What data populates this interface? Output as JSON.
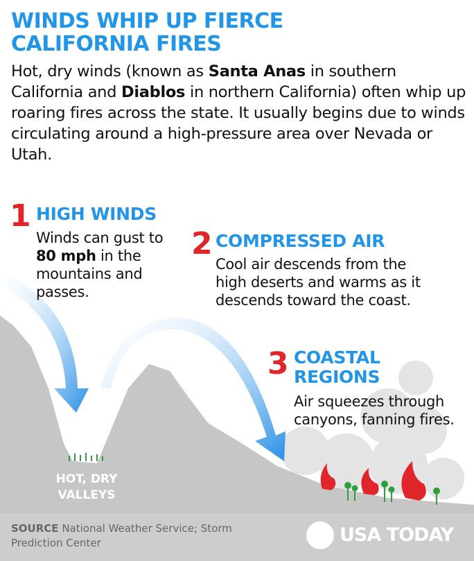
{
  "header": {
    "title_lines": [
      "WINDS WHIP UP FIERCE",
      "CALIFORNIA FIRES"
    ],
    "intro": [
      "Hot, dry winds (known as ",
      "Santa Anas",
      " in southern California and ",
      "Diablos",
      " in northern California) often whip up roaring fires across the state. It usually begins due to winds circulating around a high-pressure area over Nevada or Utah."
    ]
  },
  "steps": [
    {
      "number": "1",
      "heading_lines": [
        "HIGH WINDS"
      ],
      "text": [
        "Winds can gust to ",
        "80 mph",
        " in the mountains and passes."
      ]
    },
    {
      "number": "2",
      "heading_lines": [
        "COMPRESSED AIR"
      ],
      "text": [
        "Cool air descends from the high deserts and warms as it descends toward the coast."
      ]
    },
    {
      "number": "3",
      "heading_lines": [
        "COASTAL",
        "REGIONS"
      ],
      "text": [
        "Air squeezes through canyons, fanning fires."
      ]
    }
  ],
  "valley_label_lines": [
    "HOT, DRY",
    "VALLEYS"
  ],
  "source": {
    "label": "SOURCE",
    "text": "National Weather Service; Storm Prediction Center"
  },
  "logo": "USA TODAY"
}
